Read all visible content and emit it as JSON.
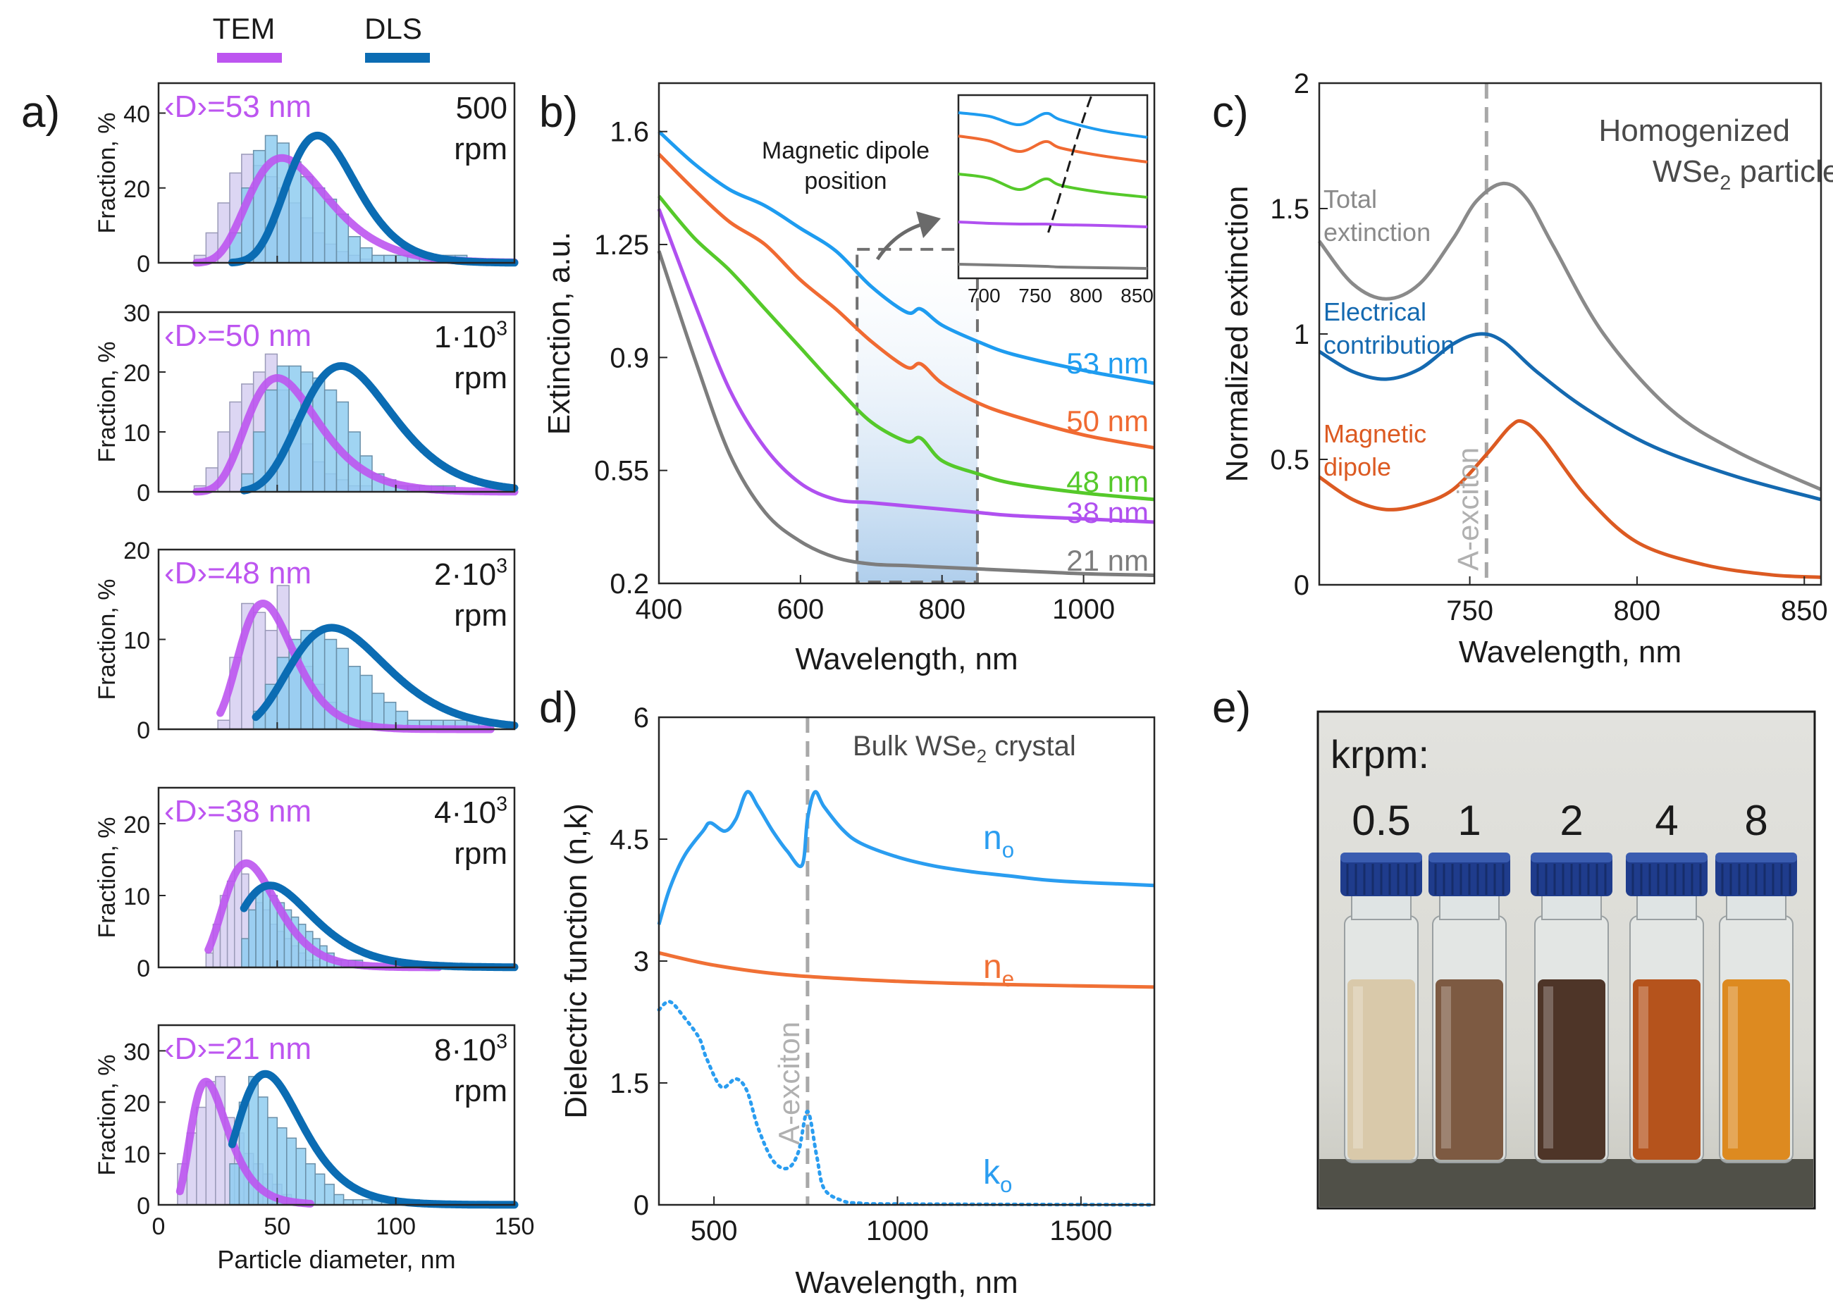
{
  "colors": {
    "tem": "#bd55f0",
    "dls": "#0b6cb3",
    "tem_bar": "#d8d2f2",
    "dls_bar": "#8fcdf0",
    "c53": "#1e9cf0",
    "c50": "#f06a32",
    "c48": "#55c92a",
    "c38": "#b050f0",
    "c21": "#7d7d7d",
    "total": "#8a8a8a",
    "electrical": "#1469b0",
    "magnetic": "#dc5a22",
    "no": "#2a9df0",
    "ne": "#f07035",
    "ko": "#2a9df0",
    "exciton_line": "#a8a8a8"
  },
  "legend": {
    "tem": "TEM",
    "dls": "DLS"
  },
  "panels": {
    "a": {
      "label": "a)",
      "ylabel": "Fraction, %",
      "xlabel": "Particle diameter, nm",
      "xticks": [
        "0",
        "50",
        "100",
        "150"
      ],
      "rows": [
        {
          "mean": "‹D›=53 nm",
          "speed_base": "500",
          "speed_exp": "",
          "rpm": "rpm",
          "ymax": 48,
          "yticks": [
            "0",
            "20",
            "40"
          ]
        },
        {
          "mean": "‹D›=50 nm",
          "speed_base": "1·10",
          "speed_exp": "3",
          "rpm": "rpm",
          "ymax": 30,
          "yticks": [
            "0",
            "10",
            "20",
            "30"
          ]
        },
        {
          "mean": "‹D›=48 nm",
          "speed_base": "2·10",
          "speed_exp": "3",
          "rpm": "rpm",
          "ymax": 20,
          "yticks": [
            "0",
            "10",
            "20"
          ]
        },
        {
          "mean": "‹D›=38 nm",
          "speed_base": "4·10",
          "speed_exp": "3",
          "rpm": "rpm",
          "ymax": 25,
          "yticks": [
            "0",
            "10",
            "20"
          ]
        },
        {
          "mean": "‹D›=21 nm",
          "speed_base": "8·10",
          "speed_exp": "3",
          "rpm": "rpm",
          "ymax": 35,
          "yticks": [
            "0",
            "10",
            "20",
            "30"
          ]
        }
      ]
    },
    "b": {
      "label": "b)",
      "ylabel": "Extinction, a.u.",
      "xlabel": "Wavelength, nm",
      "xticks": [
        "400",
        "600",
        "800",
        "1000"
      ],
      "yticks": [
        "0.2",
        "0.55",
        "0.9",
        "1.25",
        "1.6"
      ],
      "series_labels": [
        "53 nm",
        "50 nm",
        "48 nm",
        "38 nm",
        "21 nm"
      ],
      "inset_title_1": "Magnetic dipole",
      "inset_title_2": "position",
      "inset_xticks": [
        "700",
        "750",
        "800",
        "850"
      ]
    },
    "c": {
      "label": "c)",
      "ylabel": "Normalized extinction",
      "xlabel": "Wavelength, nm",
      "xticks": [
        "750",
        "800",
        "850"
      ],
      "yticks": [
        "0",
        "0.5",
        "1",
        "1.5",
        "2"
      ],
      "title_1": "Homogenized",
      "title_2": "WSe",
      "title_sub": "2",
      "title_3": " particle",
      "total_1": "Total",
      "total_2": "extinction",
      "elec_1": "Electrical",
      "elec_2": "contribution",
      "mag_1": "Magnetic",
      "mag_2": "dipole",
      "exciton": "A-exciton"
    },
    "d": {
      "label": "d)",
      "ylabel": "Dielectric function (n,k)",
      "xlabel": "Wavelength, nm",
      "xticks": [
        "500",
        "1000",
        "1500"
      ],
      "yticks": [
        "0",
        "1.5",
        "3",
        "4.5",
        "6"
      ],
      "title_1": "Bulk WSe",
      "title_sub": "2",
      "title_2": " crystal",
      "no": "n",
      "no_sub": "o",
      "ne": "n",
      "ne_sub": "e",
      "ko": "k",
      "ko_sub": "o",
      "exciton": "A-exciton"
    },
    "e": {
      "label": "e)",
      "krpm": "krpm:",
      "vials": [
        "0.5",
        "1",
        "2",
        "4",
        "8"
      ]
    }
  },
  "chart_data": [
    {
      "type": "bar",
      "panel": "a",
      "x_unit": "nm",
      "xlim": [
        0,
        150
      ],
      "rows": [
        {
          "tem_bins_start": 15,
          "bin_width": 5,
          "tem_values": [
            2,
            8,
            16,
            24,
            29,
            26,
            23,
            20,
            16,
            12,
            8,
            5,
            3,
            2,
            1
          ],
          "dls_bins_start": 30,
          "dls_values": [
            8,
            20,
            30,
            34,
            32,
            27,
            23,
            20,
            17,
            13,
            7,
            4,
            2,
            2,
            2,
            2,
            2,
            2,
            2,
            2
          ],
          "tem_fit": {
            "peak": 52,
            "amp": 28,
            "sigma": 0.32
          },
          "dls_fit": {
            "peak": 67,
            "amp": 34,
            "sigma": 0.22
          }
        },
        {
          "tem_bins_start": 15,
          "bin_width": 5,
          "tem_values": [
            1,
            4,
            10,
            15,
            18,
            20,
            23,
            17,
            12,
            8,
            5,
            3,
            2,
            1,
            1
          ],
          "dls_bins_start": 35,
          "dls_values": [
            3,
            10,
            17,
            21,
            21,
            20,
            19,
            17,
            15,
            10,
            6,
            3,
            2,
            1,
            1,
            1,
            1,
            1
          ],
          "tem_fit": {
            "peak": 50,
            "amp": 19,
            "sigma": 0.3
          },
          "dls_fit": {
            "peak": 77,
            "amp": 21,
            "sigma": 0.25
          }
        },
        {
          "tem_bins_start": 25,
          "bin_width": 5,
          "tem_values": [
            1,
            8,
            14,
            13,
            11,
            16,
            9,
            7,
            5,
            3,
            2,
            1,
            1
          ],
          "dls_bins_start": 40,
          "dls_values": [
            2,
            5,
            8,
            10,
            11,
            11,
            10,
            9,
            7,
            6,
            4,
            3,
            2,
            1,
            1,
            1,
            1,
            1,
            1,
            1
          ],
          "tem_fit": {
            "peak": 44,
            "amp": 14,
            "sigma": 0.26
          },
          "dls_fit": {
            "peak": 73,
            "amp": 11.3,
            "sigma": 0.28
          }
        },
        {
          "tem_bins_start": 20,
          "bin_width": 3,
          "tem_values": [
            2,
            6,
            10,
            12,
            19,
            13,
            10,
            9,
            8,
            6,
            5,
            4,
            3,
            2,
            1,
            1
          ],
          "dls_bins_start": 35,
          "dls_values": [
            4,
            8,
            11,
            11,
            10,
            9,
            8,
            7,
            6,
            5,
            4,
            3,
            2,
            1,
            1,
            1,
            1
          ],
          "tem_fit": {
            "peak": 37,
            "amp": 14.5,
            "sigma": 0.3
          },
          "dls_fit": {
            "peak": 47,
            "amp": 11.4,
            "sigma": 0.33
          }
        },
        {
          "tem_bins_start": 8,
          "bin_width": 4,
          "tem_values": [
            8,
            14,
            19,
            24,
            25,
            17,
            14,
            10,
            8,
            6,
            4,
            2,
            1
          ],
          "dls_bins_start": 30,
          "dls_values": [
            8,
            20,
            25,
            21,
            17,
            15,
            13,
            11,
            8,
            6,
            4,
            2,
            1,
            1,
            1,
            1,
            1,
            1,
            1,
            1
          ],
          "tem_fit": {
            "peak": 20,
            "amp": 24,
            "sigma": 0.38
          },
          "dls_fit": {
            "peak": 45,
            "amp": 25.5,
            "sigma": 0.3
          }
        }
      ]
    },
    {
      "type": "line",
      "panel": "b",
      "xlim": [
        400,
        1100
      ],
      "ylim": [
        0.2,
        1.75
      ],
      "series": [
        {
          "name": "53 nm",
          "x": [
            400,
            450,
            500,
            550,
            600,
            650,
            700,
            750,
            770,
            800,
            850,
            900,
            1000,
            1100
          ],
          "y": [
            1.6,
            1.5,
            1.42,
            1.37,
            1.3,
            1.23,
            1.12,
            1.04,
            1.05,
            1.0,
            0.95,
            0.91,
            0.86,
            0.82
          ]
        },
        {
          "name": "50 nm",
          "x": [
            400,
            450,
            500,
            550,
            600,
            650,
            700,
            750,
            770,
            800,
            850,
            900,
            1000,
            1100
          ],
          "y": [
            1.53,
            1.42,
            1.32,
            1.25,
            1.14,
            1.05,
            0.95,
            0.87,
            0.88,
            0.82,
            0.76,
            0.72,
            0.66,
            0.62
          ]
        },
        {
          "name": "48 nm",
          "x": [
            400,
            450,
            500,
            550,
            600,
            650,
            700,
            750,
            770,
            800,
            850,
            900,
            1000,
            1100
          ],
          "y": [
            1.4,
            1.27,
            1.17,
            1.05,
            0.93,
            0.81,
            0.7,
            0.64,
            0.65,
            0.58,
            0.54,
            0.51,
            0.48,
            0.46
          ]
        },
        {
          "name": "38 nm",
          "x": [
            400,
            450,
            500,
            550,
            600,
            650,
            700,
            750,
            800,
            850,
            900,
            1000,
            1100
          ],
          "y": [
            1.36,
            1.07,
            0.8,
            0.62,
            0.51,
            0.46,
            0.45,
            0.44,
            0.43,
            0.42,
            0.41,
            0.4,
            0.39
          ]
        },
        {
          "name": "21 nm",
          "x": [
            400,
            450,
            500,
            550,
            600,
            650,
            700,
            750,
            800,
            850,
            900,
            1000,
            1100
          ],
          "y": [
            1.23,
            0.9,
            0.6,
            0.42,
            0.33,
            0.28,
            0.26,
            0.255,
            0.25,
            0.245,
            0.24,
            0.23,
            0.225
          ]
        }
      ]
    },
    {
      "type": "line",
      "panel": "c",
      "xlim": [
        705,
        855
      ],
      "ylim": [
        0,
        2
      ],
      "series": [
        {
          "name": "Total extinction",
          "x": [
            705,
            715,
            725,
            735,
            745,
            752,
            760,
            767,
            775,
            790,
            810,
            830,
            855
          ],
          "y": [
            1.37,
            1.2,
            1.14,
            1.2,
            1.38,
            1.53,
            1.6,
            1.54,
            1.35,
            1.0,
            0.7,
            0.53,
            0.38
          ]
        },
        {
          "name": "Electrical contribution",
          "x": [
            705,
            715,
            725,
            735,
            745,
            753,
            760,
            770,
            785,
            805,
            830,
            855
          ],
          "y": [
            0.93,
            0.85,
            0.82,
            0.86,
            0.96,
            1.0,
            0.97,
            0.85,
            0.7,
            0.55,
            0.43,
            0.34
          ]
        },
        {
          "name": "Magnetic dipole",
          "x": [
            705,
            715,
            725,
            735,
            745,
            755,
            762,
            766,
            772,
            785,
            800,
            820,
            840,
            855
          ],
          "y": [
            0.43,
            0.34,
            0.3,
            0.32,
            0.38,
            0.52,
            0.63,
            0.65,
            0.58,
            0.35,
            0.17,
            0.08,
            0.04,
            0.03
          ]
        }
      ],
      "vline_x": 755
    },
    {
      "type": "line",
      "panel": "d",
      "xlim": [
        350,
        1700
      ],
      "ylim": [
        0,
        6
      ],
      "series": [
        {
          "name": "n_o",
          "x": [
            350,
            380,
            420,
            470,
            490,
            530,
            560,
            590,
            620,
            660,
            700,
            740,
            755,
            775,
            800,
            850,
            900,
            1000,
            1100,
            1200,
            1300,
            1400,
            1500,
            1600,
            1700
          ],
          "y": [
            3.45,
            3.9,
            4.3,
            4.6,
            4.7,
            4.6,
            4.75,
            5.08,
            4.9,
            4.6,
            4.35,
            4.18,
            4.75,
            5.08,
            4.9,
            4.62,
            4.45,
            4.28,
            4.17,
            4.1,
            4.05,
            4.0,
            3.97,
            3.95,
            3.93
          ]
        },
        {
          "name": "n_e",
          "x": [
            350,
            500,
            700,
            1000,
            1300,
            1700
          ],
          "y": [
            3.1,
            2.95,
            2.83,
            2.75,
            2.71,
            2.68
          ]
        },
        {
          "name": "k_o",
          "x": [
            350,
            380,
            420,
            460,
            480,
            520,
            560,
            590,
            620,
            660,
            700,
            730,
            755,
            780,
            800,
            850,
            900,
            1000,
            1700
          ],
          "y": [
            2.4,
            2.5,
            2.3,
            2.05,
            1.8,
            1.45,
            1.55,
            1.4,
            0.95,
            0.55,
            0.45,
            0.65,
            1.15,
            0.6,
            0.2,
            0.05,
            0.02,
            0.01,
            0.0
          ]
        }
      ],
      "vline_x": 755
    }
  ]
}
